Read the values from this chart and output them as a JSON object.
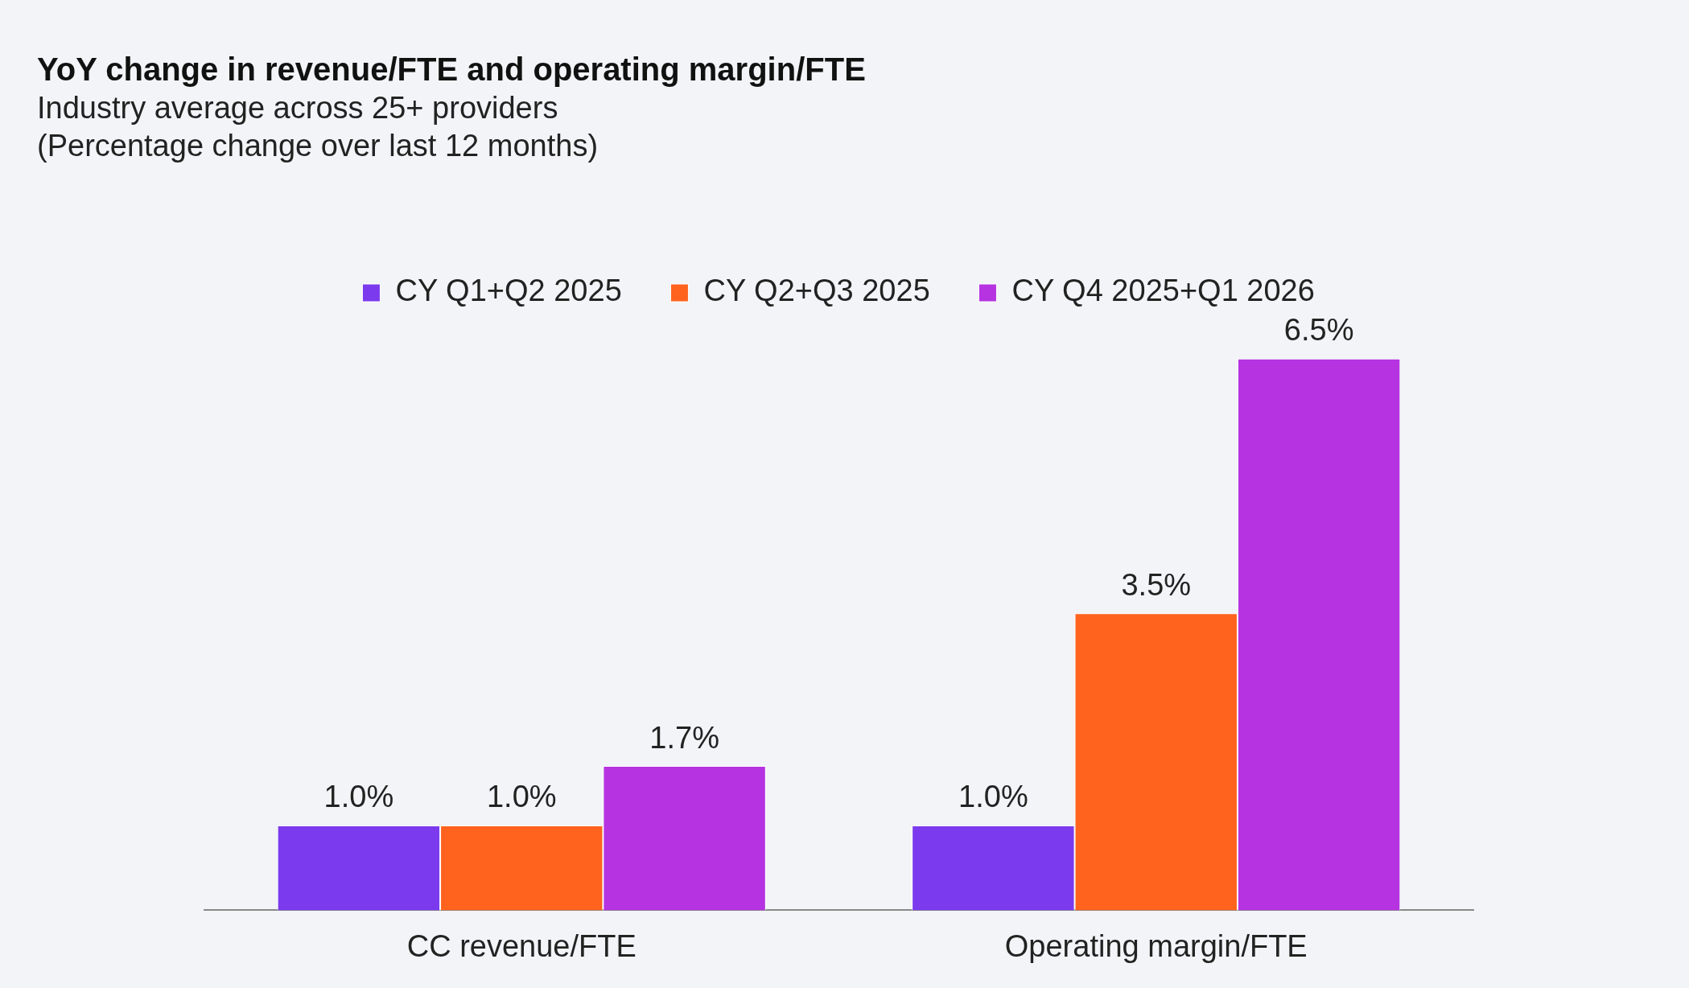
{
  "chart_data": {
    "type": "bar",
    "title": "YoY change in revenue/FTE and operating margin/FTE",
    "subtitle": "Industry average across 25+ providers\n(Percentage change over last 12 months)",
    "categories": [
      "CC revenue/FTE",
      "Operating margin/FTE"
    ],
    "series": [
      {
        "name": "CY Q1+Q2 2025",
        "color": "#7b3aed",
        "values": [
          1.0,
          1.0
        ],
        "value_labels": [
          "1.0%",
          "1.0%"
        ]
      },
      {
        "name": "CY Q2+Q3 2025",
        "color": "#ff631e",
        "values": [
          1.0,
          3.5
        ],
        "value_labels": [
          "1.0%",
          "3.5%"
        ]
      },
      {
        "name": "CY Q4 2025+Q1 2026",
        "color": "#b533e0",
        "values": [
          1.7,
          6.5
        ],
        "value_labels": [
          "1.7%",
          "6.5%"
        ]
      }
    ],
    "legend": "top",
    "grid": false
  }
}
